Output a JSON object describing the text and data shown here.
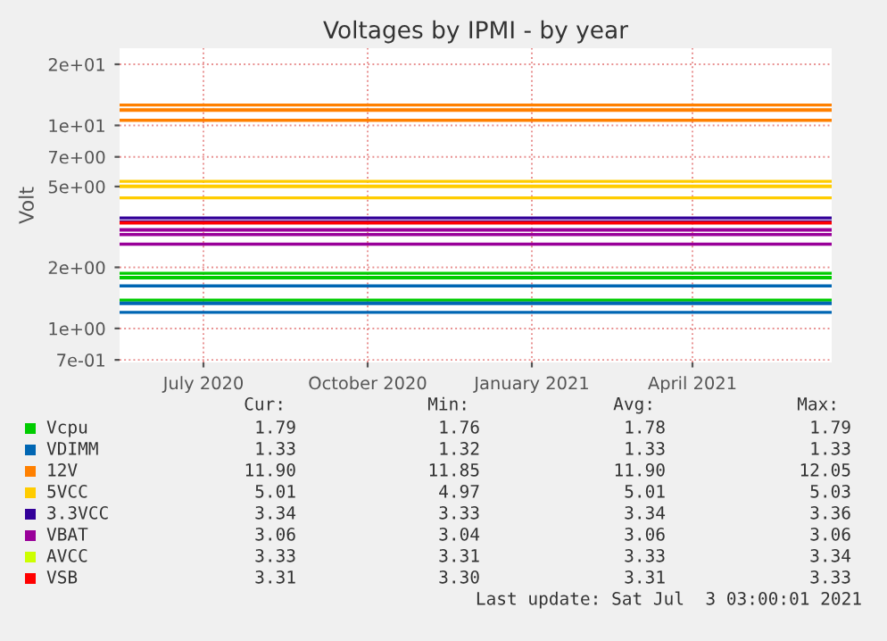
{
  "chart_data": {
    "type": "line",
    "title": "Voltages by IPMI - by year",
    "ylabel": "Volt",
    "x": [
      "2020-05-30",
      "2021-07-03"
    ],
    "series": [
      {
        "name": "Vcpu",
        "color": "#00cc00",
        "values": [
          1.78,
          1.78
        ]
      },
      {
        "name": "VDIMM",
        "color": "#0066b3",
        "values": [
          1.33,
          1.33
        ]
      },
      {
        "name": "12V",
        "color": "#ff8000",
        "values": [
          11.9,
          11.9
        ]
      },
      {
        "name": "5VCC",
        "color": "#ffcc00",
        "values": [
          5.01,
          5.01
        ]
      },
      {
        "name": "3.3VCC",
        "color": "#330099",
        "values": [
          3.34,
          3.34
        ]
      },
      {
        "name": "VBAT",
        "color": "#990099",
        "values": [
          3.06,
          3.06
        ]
      },
      {
        "name": "AVCC",
        "color": "#ccff00",
        "values": [
          null,
          null
        ]
      },
      {
        "name": "VSB",
        "color": "#ff0000",
        "values": [
          3.31,
          3.31
        ]
      }
    ],
    "ref_lines": [
      {
        "axis": "y",
        "value": 12.6,
        "color": "#ff8000"
      },
      {
        "axis": "y",
        "value": 10.6,
        "color": "#ff8000"
      },
      {
        "axis": "y",
        "value": 5.3,
        "color": "#ffcc00"
      },
      {
        "axis": "y",
        "value": 4.4,
        "color": "#ffcc00"
      },
      {
        "axis": "y",
        "value": 3.5,
        "color": "#330099"
      },
      {
        "axis": "y",
        "value": 2.9,
        "color": "#990099"
      },
      {
        "axis": "y",
        "value": 2.6,
        "color": "#990099"
      },
      {
        "axis": "y",
        "value": 1.87,
        "color": "#00cc00"
      },
      {
        "axis": "y",
        "value": 1.62,
        "color": "#0066b3"
      },
      {
        "axis": "y",
        "value": 1.38,
        "color": "#00cc00"
      },
      {
        "axis": "y",
        "value": 1.2,
        "color": "#0066b3"
      }
    ],
    "log": true,
    "ylim": [
      0.68,
      24
    ],
    "yticks": [
      {
        "value": 0.7,
        "label": "7e-01"
      },
      {
        "value": 1,
        "label": "1e+00"
      },
      {
        "value": 2,
        "label": "2e+00"
      },
      {
        "value": 5,
        "label": "5e+00"
      },
      {
        "value": 7,
        "label": "7e+00"
      },
      {
        "value": 10,
        "label": "1e+01"
      },
      {
        "value": 20,
        "label": "2e+01"
      }
    ],
    "xlim": [
      "2020-05-30",
      "2021-07-03"
    ],
    "xticks": [
      {
        "value": "2020-07-16",
        "label": "July 2020"
      },
      {
        "value": "2020-10-16",
        "label": "October 2020"
      },
      {
        "value": "2021-01-16",
        "label": "January 2021"
      },
      {
        "value": "2021-04-16",
        "label": "April 2021"
      }
    ],
    "grid": true,
    "legend": "bottom",
    "marker": "none",
    "line_style": "solid",
    "annotations": [
      "Cur:",
      "Min:",
      "Avg:",
      "Max:",
      "1.79",
      "1.76",
      "1.78",
      "1.79",
      "1.33",
      "1.32",
      "1.33",
      "1.33",
      "11.90",
      "11.85",
      "11.90",
      "12.05",
      "5.01",
      "4.97",
      "5.01",
      "5.03",
      "3.34",
      "3.33",
      "3.34",
      "3.36",
      "3.06",
      "3.04",
      "3.06",
      "3.06",
      "3.33",
      "3.31",
      "3.33",
      "3.34",
      "3.31",
      "3.30",
      "3.31",
      "3.33",
      "Last update: Sat Jul  3 03:00:01 2021"
    ]
  }
}
